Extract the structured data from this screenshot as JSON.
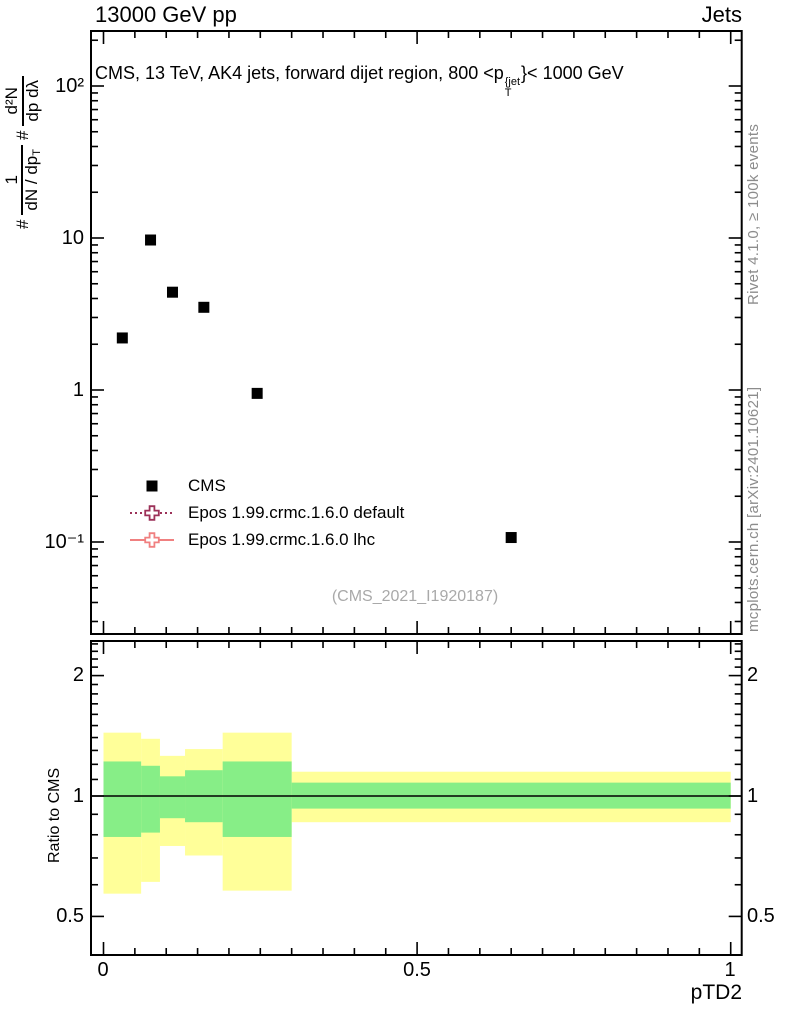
{
  "header": {
    "left": "13000 GeV pp",
    "right": "Jets"
  },
  "title": {
    "prefix": "CMS, 13 TeV, AK4 jets, forward dijet region, 800 <p",
    "sup": "{jet",
    "sub": "T",
    "suffix": "}< 1000 GeV"
  },
  "axes": {
    "main_y": {
      "label": {
        "hash1": "#",
        "frac1_num": "1",
        "frac1_den": "dN / dp",
        "frac1_den_sub": "T",
        "hash2": "#",
        "frac2_num": "d²N",
        "frac2_den": "dp dλ"
      },
      "ticks": [
        {
          "value": 100,
          "label": "10²"
        },
        {
          "value": 10,
          "label": "10"
        },
        {
          "value": 1,
          "label": "1"
        },
        {
          "value": 0.1,
          "label": "10⁻¹"
        }
      ]
    },
    "ratio_y": {
      "label": "Ratio to CMS",
      "ticks": [
        {
          "value": 2,
          "label": "2"
        },
        {
          "value": 1,
          "label": "1"
        },
        {
          "value": 0.5,
          "label": "0.5"
        }
      ]
    },
    "x": {
      "label": "pTD2",
      "ticks": [
        {
          "value": 0,
          "label": "0"
        },
        {
          "value": 0.5,
          "label": "0.5"
        },
        {
          "value": 1,
          "label": "1"
        }
      ]
    }
  },
  "legend": {
    "items": [
      {
        "label": "CMS",
        "marker": "filled-square",
        "line": "none",
        "color": "#000000"
      },
      {
        "label": "Epos 1.99.crmc.1.6.0 default",
        "marker": "open-cross",
        "line": "dotted",
        "color": "#9c3158"
      },
      {
        "label": "Epos 1.99.crmc.1.6.0 lhc",
        "marker": "open-cross",
        "line": "solid",
        "color": "#f08080"
      }
    ]
  },
  "watermark": "(CMS_2021_I1920187)",
  "side_notes": {
    "top": "Rivet 4.1.0, ≥ 100k events",
    "bottom": "mcplots.cern.ch [arXiv:2401.10621]"
  },
  "chart_data": [
    {
      "type": "scatter",
      "panel": "main",
      "title": "CMS, 13 TeV, AK4 jets, forward dijet region, 800 <pT{jet}< 1000 GeV",
      "ylabel": "# 1/(dN/dp_T) # d²N/(dp dλ)",
      "yscale": "log",
      "ylim": [
        0.025,
        230
      ],
      "xlim": [
        -0.02,
        1.018
      ],
      "grid": false,
      "legend_position": "center-left",
      "series": [
        {
          "name": "CMS",
          "marker": "filled-square",
          "color": "#000000",
          "x": [
            0.03,
            0.075,
            0.11,
            0.16,
            0.245,
            0.65
          ],
          "y": [
            2.2,
            9.7,
            4.4,
            3.5,
            0.95,
            0.107
          ]
        }
      ]
    },
    {
      "type": "ratio-bands",
      "panel": "ratio",
      "ylabel": "Ratio to CMS",
      "xlabel": "pTD2",
      "yscale": "log",
      "ylim": [
        0.4,
        2.45
      ],
      "xlim": [
        -0.02,
        1.018
      ],
      "ref_line": 1,
      "colors": {
        "yellow": "#ffff99",
        "green": "#87ee87"
      },
      "bands": [
        {
          "x0": 0.0,
          "x1": 0.06,
          "yellow": [
            0.57,
            1.44
          ],
          "green": [
            0.79,
            1.22
          ]
        },
        {
          "x0": 0.06,
          "x1": 0.09,
          "yellow": [
            0.61,
            1.39
          ],
          "green": [
            0.81,
            1.19
          ]
        },
        {
          "x0": 0.09,
          "x1": 0.13,
          "yellow": [
            0.75,
            1.26
          ],
          "green": [
            0.88,
            1.12
          ]
        },
        {
          "x0": 0.13,
          "x1": 0.19,
          "yellow": [
            0.71,
            1.31
          ],
          "green": [
            0.86,
            1.16
          ]
        },
        {
          "x0": 0.19,
          "x1": 0.3,
          "yellow": [
            0.58,
            1.44
          ],
          "green": [
            0.79,
            1.22
          ]
        },
        {
          "x0": 0.3,
          "x1": 1.0,
          "yellow": [
            0.86,
            1.15
          ],
          "green": [
            0.93,
            1.08
          ]
        }
      ]
    }
  ]
}
